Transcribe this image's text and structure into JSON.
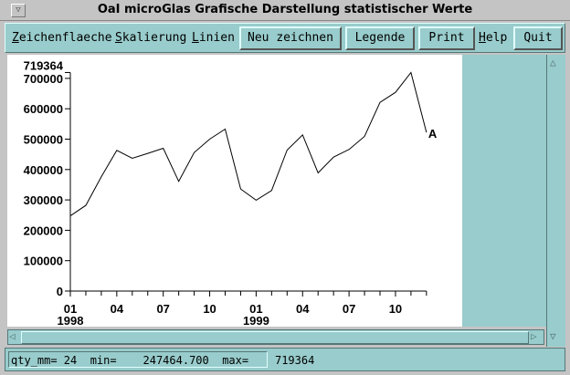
{
  "window": {
    "title": "OaI microGlas  Grafische Darstellung statistischer Werte"
  },
  "menubar": {
    "menus": [
      {
        "label": "Zeichenflaeche",
        "mnemonic": "Z"
      },
      {
        "label": "Skalierung",
        "mnemonic": "S"
      },
      {
        "label": "Linien",
        "mnemonic": "L"
      }
    ],
    "buttons": {
      "redraw": "Neu zeichnen",
      "legend": "Legende",
      "print": "Print",
      "help": "Help",
      "quit": "Quit"
    }
  },
  "status": {
    "text": "qty_mm= 24  min=    247464.700  max=    719364"
  },
  "colors": {
    "panel": "#99cccc",
    "plot_bg": "#ffffff",
    "line": "#000000"
  },
  "chart_data": {
    "type": "line",
    "ylim": [
      0,
      719364
    ],
    "y_ticks": [
      "0",
      "100000",
      "200000",
      "300000",
      "400000",
      "500000",
      "600000",
      "700000"
    ],
    "y_max_label": "719364",
    "x_tick_labels": [
      {
        "month": 1,
        "label": "01",
        "year": "1998"
      },
      {
        "month": 4,
        "label": "04"
      },
      {
        "month": 7,
        "label": "07"
      },
      {
        "month": 10,
        "label": "10"
      },
      {
        "month": 13,
        "label": "01",
        "year": "1999"
      },
      {
        "month": 16,
        "label": "04"
      },
      {
        "month": 19,
        "label": "07"
      },
      {
        "month": 22,
        "label": "10"
      }
    ],
    "series": [
      {
        "name": "A",
        "values": [
          247465,
          282000,
          376000,
          463000,
          437000,
          453000,
          470000,
          361000,
          456000,
          500000,
          533000,
          336000,
          299000,
          331000,
          464000,
          514000,
          389000,
          441000,
          466000,
          509000,
          621000,
          654000,
          719364,
          522000
        ]
      }
    ],
    "grid": false
  }
}
